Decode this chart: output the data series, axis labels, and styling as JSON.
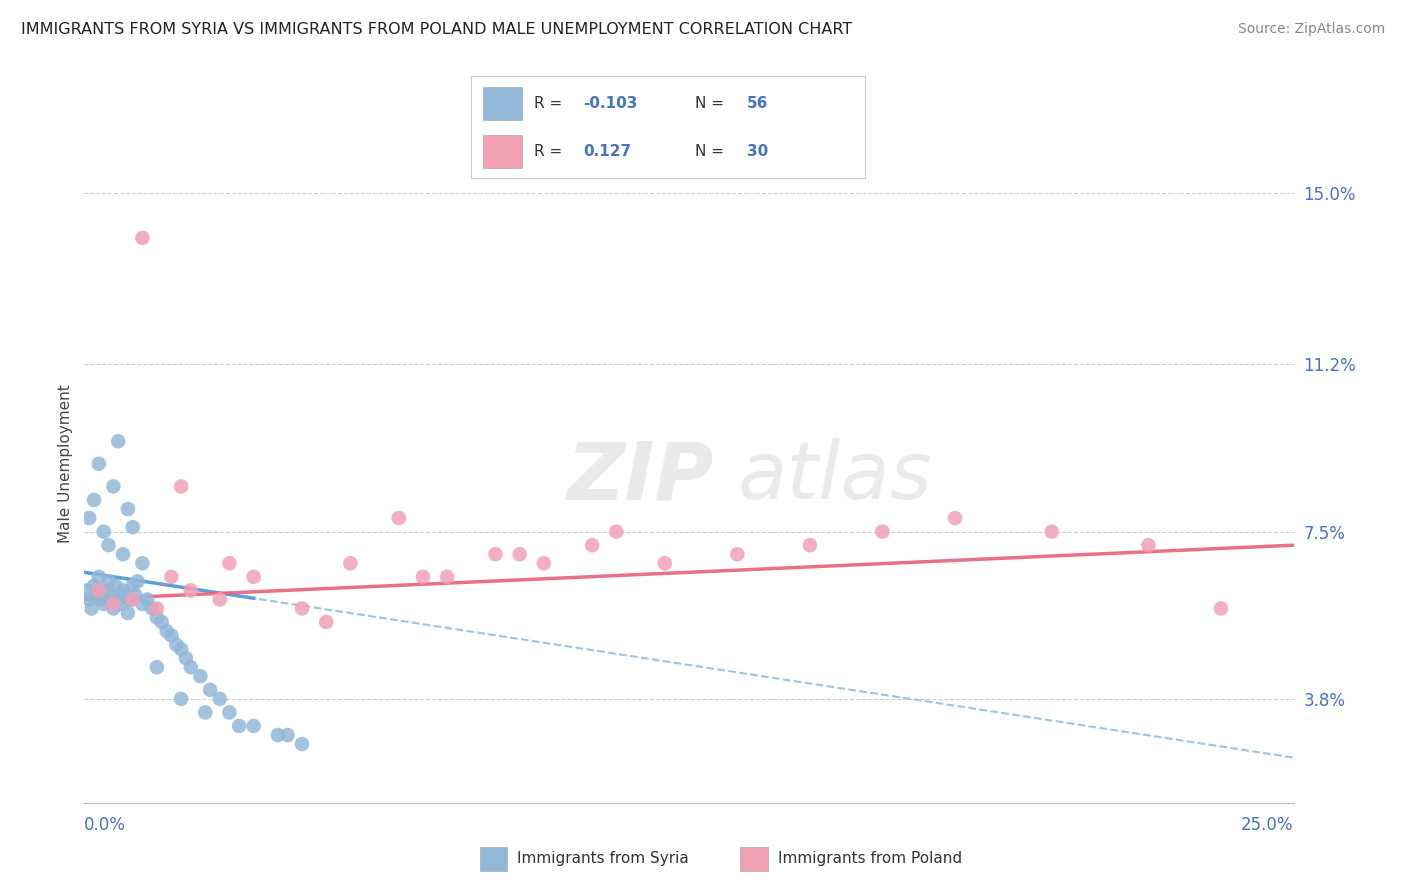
{
  "title": "IMMIGRANTS FROM SYRIA VS IMMIGRANTS FROM POLAND MALE UNEMPLOYMENT CORRELATION CHART",
  "source": "Source: ZipAtlas.com",
  "ylabel": "Male Unemployment",
  "ytick_values": [
    3.8,
    7.5,
    11.2,
    15.0
  ],
  "xmin": 0.0,
  "xmax": 25.0,
  "ymin": 1.5,
  "ymax": 16.5,
  "legend_syria": "Immigrants from Syria",
  "legend_poland": "Immigrants from Poland",
  "R_syria": "-0.103",
  "N_syria": "56",
  "R_poland": "0.127",
  "N_poland": "30",
  "color_syria": "#92b8d8",
  "color_poland": "#f2a0b4",
  "line_color_syria_solid": "#5b9fd4",
  "line_color_syria_dash": "#90c0e0",
  "line_color_poland": "#e8607a",
  "syria_x": [
    0.05,
    0.1,
    0.15,
    0.2,
    0.25,
    0.3,
    0.35,
    0.4,
    0.45,
    0.5,
    0.55,
    0.6,
    0.65,
    0.7,
    0.75,
    0.8,
    0.85,
    0.9,
    0.95,
    1.0,
    1.05,
    1.1,
    1.2,
    1.3,
    1.4,
    1.5,
    1.6,
    1.7,
    1.8,
    1.9,
    2.0,
    2.1,
    2.2,
    2.4,
    2.6,
    2.8,
    3.0,
    3.5,
    4.0,
    4.5,
    0.1,
    0.2,
    0.3,
    0.4,
    0.5,
    0.6,
    0.7,
    0.8,
    0.9,
    1.0,
    1.2,
    1.5,
    2.0,
    2.5,
    3.2,
    4.2
  ],
  "syria_y": [
    6.2,
    6.0,
    5.8,
    6.3,
    6.1,
    6.5,
    6.0,
    5.9,
    6.2,
    6.4,
    6.1,
    5.8,
    6.3,
    6.0,
    5.9,
    6.2,
    6.1,
    5.7,
    6.0,
    6.3,
    6.1,
    6.4,
    5.9,
    6.0,
    5.8,
    5.6,
    5.5,
    5.3,
    5.2,
    5.0,
    4.9,
    4.7,
    4.5,
    4.3,
    4.0,
    3.8,
    3.5,
    3.2,
    3.0,
    2.8,
    7.8,
    8.2,
    9.0,
    7.5,
    7.2,
    8.5,
    9.5,
    7.0,
    8.0,
    7.6,
    6.8,
    4.5,
    3.8,
    3.5,
    3.2,
    3.0
  ],
  "poland_x": [
    0.3,
    0.6,
    1.0,
    1.5,
    1.8,
    2.2,
    2.8,
    3.5,
    4.5,
    5.5,
    6.5,
    7.5,
    8.5,
    9.5,
    10.5,
    12.0,
    13.5,
    15.0,
    16.5,
    18.0,
    20.0,
    22.0,
    23.5,
    1.2,
    2.0,
    3.0,
    5.0,
    7.0,
    9.0,
    11.0
  ],
  "poland_y": [
    6.2,
    5.9,
    6.0,
    5.8,
    6.5,
    6.2,
    6.0,
    6.5,
    5.8,
    6.8,
    7.8,
    6.5,
    7.0,
    6.8,
    7.2,
    6.8,
    7.0,
    7.2,
    7.5,
    7.8,
    7.5,
    7.2,
    5.8,
    14.0,
    8.5,
    6.8,
    5.5,
    6.5,
    7.0,
    7.5
  ],
  "syria_trend_x0": 0.0,
  "syria_trend_y0": 6.6,
  "syria_trend_x1": 25.0,
  "syria_trend_y1": 2.5,
  "syria_solid_x1": 3.5,
  "poland_trend_x0": 0.0,
  "poland_trend_y0": 6.0,
  "poland_trend_x1": 25.0,
  "poland_trend_y1": 7.2
}
